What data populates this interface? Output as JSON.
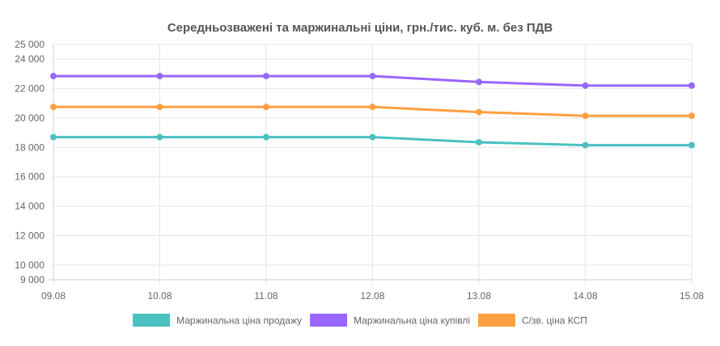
{
  "chart_data": {
    "type": "line",
    "title": "Середньозважені та маржинальні ціни, грн./тис. куб. м. без ПДВ",
    "categories": [
      "09.08",
      "10.08",
      "11.08",
      "12.08",
      "13.08",
      "14.08",
      "15.08"
    ],
    "ylim": [
      9000,
      25000
    ],
    "y_ticks": [
      9000,
      10000,
      12000,
      14000,
      16000,
      18000,
      20000,
      22000,
      24000,
      25000
    ],
    "y_tick_labels": [
      "9 000",
      "10 000",
      "12 000",
      "14 000",
      "16 000",
      "18 000",
      "20 000",
      "22 000",
      "24 000",
      "25 000"
    ],
    "grid": true,
    "legend_position": "bottom",
    "series": [
      {
        "name": "Маржинальна ціна продажу",
        "color": "#4bc0c0",
        "values": [
          18700,
          18700,
          18700,
          18700,
          18350,
          18150,
          18150
        ]
      },
      {
        "name": "Маржинальна ціна купівлі",
        "color": "#9966ff",
        "values": [
          22850,
          22850,
          22850,
          22850,
          22450,
          22200,
          22200
        ]
      },
      {
        "name": "С/зв. ціна КСП",
        "color": "#ff9f40",
        "values": [
          20750,
          20750,
          20750,
          20750,
          20400,
          20150,
          20150
        ]
      }
    ]
  }
}
